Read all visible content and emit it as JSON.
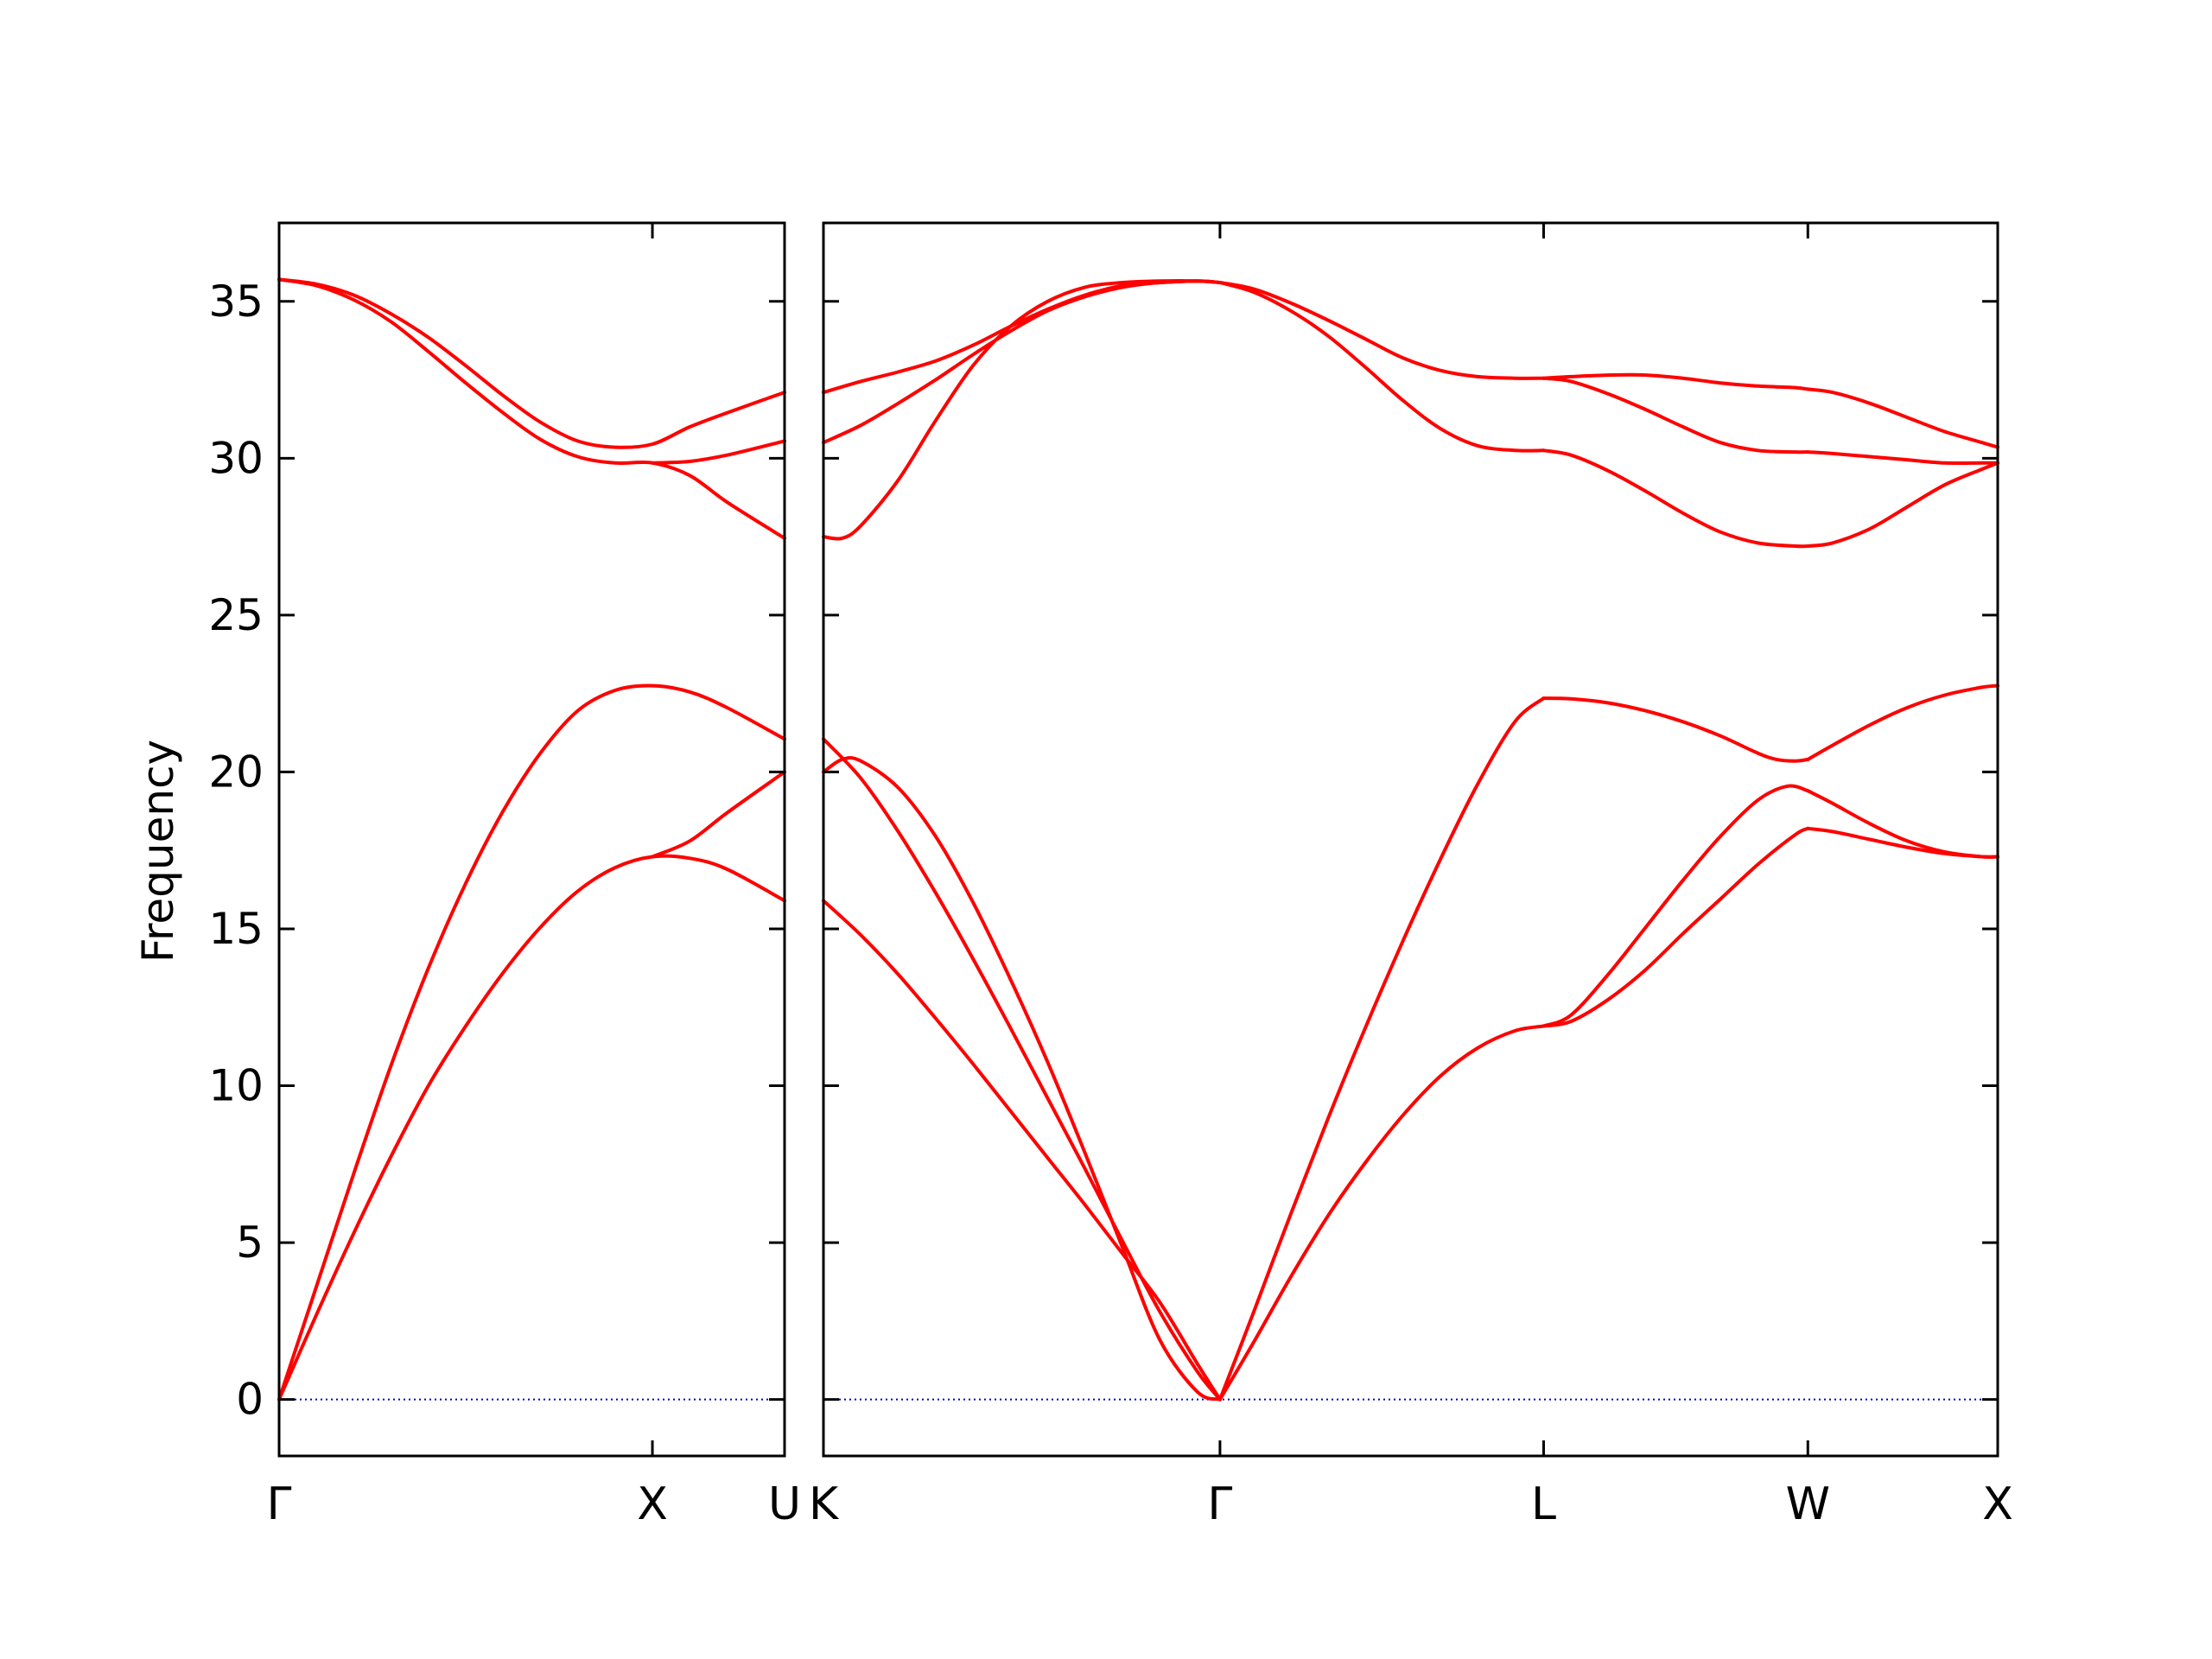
{
  "chart_data": {
    "type": "line",
    "ylabel": "Frequency",
    "ylim": [
      -1.8,
      37.5
    ],
    "yticks": [
      0,
      5,
      10,
      15,
      20,
      25,
      30,
      35
    ],
    "ytick_labels": [
      "0",
      "5",
      "10",
      "15",
      "20",
      "25",
      "30",
      "35"
    ],
    "line_color": "#ff0000",
    "zero_line_color": "#0000cc",
    "zero_line": 0,
    "grid": false,
    "panels": [
      {
        "id": "left",
        "x_range": [
          0,
          1.354
        ],
        "xticks": [
          0,
          1.0,
          1.354
        ],
        "xtick_labels": [
          "Γ",
          "X",
          "U"
        ],
        "branches": [
          {
            "x": [
              0,
              0.1,
              0.2,
              0.3,
              0.4,
              0.5,
              0.6,
              0.7,
              0.8,
              0.9,
              1.0,
              1.1,
              1.2,
              1.354
            ],
            "y": [
              0,
              2.7,
              5.3,
              7.75,
              10.0,
              11.9,
              13.6,
              15.05,
              16.2,
              16.95,
              17.3,
              17.25,
              16.9,
              15.9
            ]
          },
          {
            "x": [
              0,
              0.1,
              0.2,
              0.3,
              0.4,
              0.5,
              0.6,
              0.7,
              0.8,
              0.9,
              1.0,
              1.1,
              1.2,
              1.354
            ],
            "y": [
              0,
              3.6,
              7.2,
              10.65,
              13.75,
              16.45,
              18.75,
              20.6,
              21.95,
              22.6,
              22.75,
              22.55,
              22.05,
              21.05
            ]
          },
          {
            "x": [
              1.0,
              1.1,
              1.2,
              1.354
            ],
            "y": [
              17.3,
              17.8,
              18.7,
              20.0
            ]
          },
          {
            "x": [
              0,
              0.1,
              0.2,
              0.3,
              0.4,
              0.5,
              0.6,
              0.7,
              0.8,
              0.9,
              1.0,
              1.1,
              1.2,
              1.354
            ],
            "y": [
              35.7,
              35.5,
              35.05,
              34.35,
              33.4,
              32.4,
              31.45,
              30.6,
              30.05,
              29.85,
              29.85,
              29.45,
              28.6,
              27.45
            ]
          },
          {
            "x": [
              1.0,
              1.1,
              1.2,
              1.354
            ],
            "y": [
              29.85,
              29.9,
              30.1,
              30.55
            ]
          },
          {
            "x": [
              0,
              0.1,
              0.2,
              0.3,
              0.4,
              0.5,
              0.6,
              0.7,
              0.8,
              0.9,
              1.0,
              1.1,
              1.2,
              1.354
            ],
            "y": [
              35.7,
              35.55,
              35.2,
              34.6,
              33.85,
              32.95,
              32.0,
              31.15,
              30.55,
              30.35,
              30.45,
              31.0,
              31.45,
              32.1
            ]
          }
        ]
      },
      {
        "id": "right",
        "x_range": [
          0,
          3.142
        ],
        "xticks": [
          0,
          1.061,
          1.927,
          2.634,
          3.142
        ],
        "xtick_labels": [
          "K",
          "Γ",
          "L",
          "W",
          "X"
        ],
        "branches": [
          {
            "x": [
              0,
              0.1,
              0.2,
              0.3,
              0.4,
              0.5,
              0.6,
              0.7,
              0.8,
              0.9,
              1.0,
              1.061
            ],
            "y": [
              15.9,
              14.8,
              13.55,
              12.15,
              10.7,
              9.2,
              7.7,
              6.2,
              4.65,
              3.1,
              1.15,
              0
            ]
          },
          {
            "x": [
              0,
              0.1,
              0.2,
              0.3,
              0.4,
              0.5,
              0.6,
              0.7,
              0.8,
              0.9,
              1.0,
              1.061
            ],
            "y": [
              21.05,
              19.8,
              18.1,
              16.15,
              14.05,
              11.85,
              9.6,
              7.35,
              5.05,
              2.8,
              0.9,
              0
            ]
          },
          {
            "x": [
              0,
              0.05,
              0.1,
              0.2,
              0.3,
              0.4,
              0.5,
              0.6,
              0.7,
              0.8,
              0.9,
              1.0,
              1.061
            ],
            "y": [
              20.0,
              20.4,
              20.35,
              19.5,
              17.95,
              15.85,
              13.4,
              10.75,
              7.85,
              4.85,
              1.9,
              0.25,
              0
            ]
          },
          {
            "x": [
              1.061,
              1.15,
              1.25,
              1.35,
              1.45,
              1.55,
              1.65,
              1.75,
              1.85,
              1.927
            ],
            "y": [
              0,
              1.8,
              3.9,
              5.85,
              7.55,
              9.05,
              10.3,
              11.2,
              11.75,
              11.9
            ]
          },
          {
            "x": [
              1.061,
              1.15,
              1.25,
              1.35,
              1.45,
              1.55,
              1.65,
              1.75,
              1.85,
              1.927
            ],
            "y": [
              0,
              2.75,
              5.9,
              8.95,
              11.85,
              14.6,
              17.2,
              19.6,
              21.6,
              22.35
            ]
          },
          {
            "x": [
              1.927,
              2.0,
              2.1,
              2.2,
              2.3,
              2.4,
              2.5,
              2.6,
              2.634
            ],
            "y": [
              11.9,
              12.05,
              12.75,
              13.7,
              14.85,
              15.95,
              17.05,
              18.0,
              18.2
            ]
          },
          {
            "x": [
              1.927,
              2.0,
              2.1,
              2.2,
              2.3,
              2.4,
              2.5,
              2.58,
              2.634
            ],
            "y": [
              11.9,
              12.25,
              13.55,
              15.05,
              16.55,
              17.95,
              19.1,
              19.55,
              19.4
            ]
          },
          {
            "x": [
              1.927,
              2.0,
              2.1,
              2.2,
              2.3,
              2.4,
              2.5,
              2.55,
              2.6,
              2.634
            ],
            "y": [
              22.35,
              22.33,
              22.2,
              21.95,
              21.6,
              21.15,
              20.6,
              20.4,
              20.35,
              20.4
            ]
          },
          {
            "x": [
              2.634,
              2.7,
              2.8,
              2.9,
              3.0,
              3.1,
              3.142
            ],
            "y": [
              18.2,
              18.1,
              17.85,
              17.6,
              17.4,
              17.3,
              17.3
            ]
          },
          {
            "x": [
              2.634,
              2.7,
              2.8,
              2.9,
              3.0,
              3.1,
              3.142
            ],
            "y": [
              19.4,
              19.0,
              18.35,
              17.8,
              17.45,
              17.3,
              17.3
            ]
          },
          {
            "x": [
              2.634,
              2.7,
              2.8,
              2.9,
              3.0,
              3.1,
              3.142
            ],
            "y": [
              20.4,
              20.85,
              21.5,
              22.05,
              22.45,
              22.7,
              22.75
            ]
          },
          {
            "x": [
              0,
              0.05,
              0.1,
              0.2,
              0.3,
              0.4,
              0.5,
              0.6,
              0.7,
              0.8,
              0.9,
              1.0,
              1.061
            ],
            "y": [
              27.5,
              27.45,
              27.85,
              29.3,
              31.2,
              32.95,
              34.2,
              35.0,
              35.45,
              35.6,
              35.65,
              35.65,
              35.6
            ]
          },
          {
            "x": [
              0,
              0.1,
              0.2,
              0.3,
              0.4,
              0.5,
              0.6,
              0.7,
              0.8,
              0.9,
              1.0,
              1.061
            ],
            "y": [
              30.5,
              31.05,
              31.75,
              32.5,
              33.3,
              34.05,
              34.7,
              35.15,
              35.45,
              35.6,
              35.65,
              35.6
            ]
          },
          {
            "x": [
              0,
              0.1,
              0.2,
              0.3,
              0.4,
              0.5,
              0.6,
              0.7,
              0.8,
              0.9,
              1.0,
              1.061
            ],
            "y": [
              32.1,
              32.45,
              32.75,
              33.1,
              33.6,
              34.2,
              34.75,
              35.2,
              35.5,
              35.6,
              35.65,
              35.6
            ]
          },
          {
            "x": [
              1.061,
              1.15,
              1.25,
              1.35,
              1.45,
              1.55,
              1.65,
              1.75,
              1.85,
              1.927
            ],
            "y": [
              35.6,
              35.3,
              34.7,
              33.9,
              32.9,
              31.85,
              30.95,
              30.4,
              30.25,
              30.25
            ]
          },
          {
            "x": [
              1.061,
              1.15,
              1.25,
              1.35,
              1.45,
              1.55,
              1.65,
              1.75,
              1.85,
              1.927
            ],
            "y": [
              35.6,
              35.4,
              34.95,
              34.4,
              33.8,
              33.2,
              32.8,
              32.6,
              32.55,
              32.55
            ]
          },
          {
            "x": [
              1.927,
              2.0,
              2.1,
              2.2,
              2.3,
              2.4,
              2.5,
              2.6,
              2.634
            ],
            "y": [
              30.25,
              30.1,
              29.6,
              28.95,
              28.25,
              27.65,
              27.3,
              27.2,
              27.2
            ]
          },
          {
            "x": [
              1.927,
              2.0,
              2.1,
              2.2,
              2.3,
              2.4,
              2.5,
              2.6,
              2.634
            ],
            "y": [
              32.55,
              32.45,
              32.05,
              31.55,
              31.0,
              30.5,
              30.25,
              30.2,
              30.2
            ]
          },
          {
            "x": [
              1.927,
              2.0,
              2.1,
              2.2,
              2.3,
              2.4,
              2.5,
              2.6,
              2.634
            ],
            "y": [
              32.55,
              32.6,
              32.65,
              32.65,
              32.55,
              32.4,
              32.3,
              32.25,
              32.2
            ]
          },
          {
            "x": [
              2.634,
              2.7,
              2.8,
              2.9,
              3.0,
              3.1,
              3.142
            ],
            "y": [
              27.2,
              27.3,
              27.75,
              28.45,
              29.15,
              29.65,
              29.85
            ]
          },
          {
            "x": [
              2.634,
              2.7,
              2.8,
              2.9,
              3.0,
              3.1,
              3.142
            ],
            "y": [
              30.2,
              30.15,
              30.05,
              29.95,
              29.85,
              29.85,
              29.85
            ]
          },
          {
            "x": [
              2.634,
              2.7,
              2.8,
              2.9,
              3.0,
              3.1,
              3.142
            ],
            "y": [
              32.2,
              32.1,
              31.75,
              31.3,
              30.85,
              30.5,
              30.35
            ]
          }
        ]
      }
    ]
  }
}
